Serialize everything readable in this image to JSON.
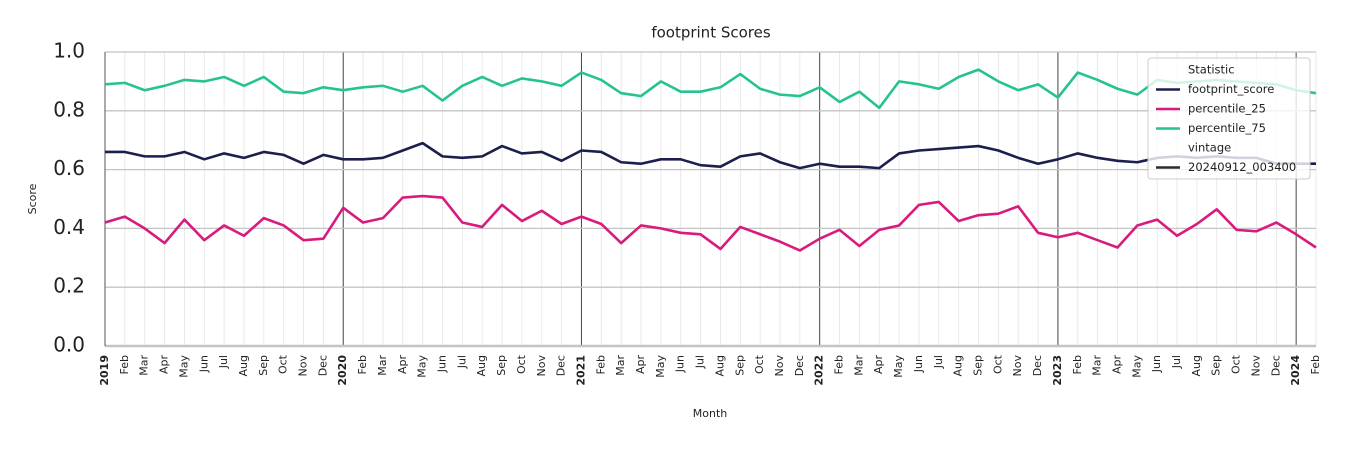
{
  "chart_data": {
    "type": "line",
    "title": "footprint Scores",
    "x_label": "Month",
    "y_label": "Score",
    "categories": [
      "2019",
      "Feb",
      "Mar",
      "Apr",
      "May",
      "Jun",
      "Jul",
      "Aug",
      "Sep",
      "Oct",
      "Nov",
      "Dec",
      "2020",
      "Feb",
      "Mar",
      "Apr",
      "May",
      "Jun",
      "Jul",
      "Aug",
      "Sep",
      "Oct",
      "Nov",
      "Dec",
      "2021",
      "Feb",
      "Mar",
      "Apr",
      "May",
      "Jun",
      "Jul",
      "Aug",
      "Sep",
      "Oct",
      "Nov",
      "Dec",
      "2022",
      "Feb",
      "Mar",
      "Apr",
      "May",
      "Jun",
      "Jul",
      "Aug",
      "Sep",
      "Oct",
      "Nov",
      "Dec",
      "2023",
      "Feb",
      "Mar",
      "Apr",
      "May",
      "Jun",
      "Jul",
      "Aug",
      "Sep",
      "Oct",
      "Nov",
      "Dec",
      "2024",
      "Feb"
    ],
    "series": [
      {
        "name": "footprint_score",
        "color": "#1c1f4e",
        "values": [
          0.66,
          0.66,
          0.645,
          0.645,
          0.66,
          0.635,
          0.655,
          0.64,
          0.66,
          0.65,
          0.62,
          0.65,
          0.635,
          0.635,
          0.64,
          0.665,
          0.69,
          0.645,
          0.64,
          0.645,
          0.68,
          0.655,
          0.66,
          0.63,
          0.665,
          0.66,
          0.625,
          0.62,
          0.635,
          0.635,
          0.615,
          0.61,
          0.645,
          0.655,
          0.625,
          0.605,
          0.62,
          0.61,
          0.61,
          0.605,
          0.655,
          0.665,
          0.67,
          0.675,
          0.68,
          0.665,
          0.64,
          0.62,
          0.635,
          0.655,
          0.64,
          0.63,
          0.625,
          0.64,
          0.645,
          0.64,
          0.645,
          0.64,
          0.64,
          0.62,
          0.62,
          0.62
        ]
      },
      {
        "name": "percentile_25",
        "color": "#d81b7c",
        "values": [
          0.42,
          0.44,
          0.4,
          0.35,
          0.43,
          0.36,
          0.41,
          0.375,
          0.435,
          0.41,
          0.36,
          0.365,
          0.47,
          0.42,
          0.435,
          0.505,
          0.51,
          0.505,
          0.42,
          0.405,
          0.48,
          0.425,
          0.46,
          0.415,
          0.44,
          0.415,
          0.35,
          0.41,
          0.4,
          0.385,
          0.38,
          0.33,
          0.405,
          0.38,
          0.355,
          0.325,
          0.365,
          0.395,
          0.34,
          0.395,
          0.41,
          0.48,
          0.49,
          0.425,
          0.445,
          0.45,
          0.475,
          0.385,
          0.37,
          0.385,
          0.36,
          0.335,
          0.41,
          0.43,
          0.375,
          0.415,
          0.465,
          0.395,
          0.39,
          0.42,
          0.38,
          0.335
        ]
      },
      {
        "name": "percentile_75",
        "color": "#26c48b",
        "values": [
          0.89,
          0.895,
          0.87,
          0.885,
          0.905,
          0.9,
          0.915,
          0.885,
          0.915,
          0.865,
          0.86,
          0.88,
          0.87,
          0.88,
          0.885,
          0.865,
          0.885,
          0.835,
          0.885,
          0.915,
          0.885,
          0.91,
          0.9,
          0.885,
          0.93,
          0.905,
          0.86,
          0.85,
          0.9,
          0.865,
          0.865,
          0.88,
          0.925,
          0.875,
          0.855,
          0.85,
          0.88,
          0.83,
          0.865,
          0.81,
          0.9,
          0.89,
          0.875,
          0.915,
          0.94,
          0.9,
          0.87,
          0.89,
          0.845,
          0.93,
          0.905,
          0.875,
          0.855,
          0.905,
          0.895,
          0.9,
          0.905,
          0.9,
          0.895,
          0.89,
          0.87,
          0.86
        ]
      }
    ],
    "ylim": [
      0,
      1
    ],
    "yticks": [
      {
        "value": 0,
        "label": "0.0"
      },
      0.2,
      0.4,
      0.6,
      0.8,
      {
        "value": 1,
        "label": "1.0"
      }
    ],
    "grid": true,
    "legend": {
      "position": "upper right",
      "title": "Statistic",
      "subtitle": "vintage",
      "extra_entries": [
        {
          "name": "20240912_003400",
          "color": "#2b2b2b"
        }
      ]
    }
  }
}
